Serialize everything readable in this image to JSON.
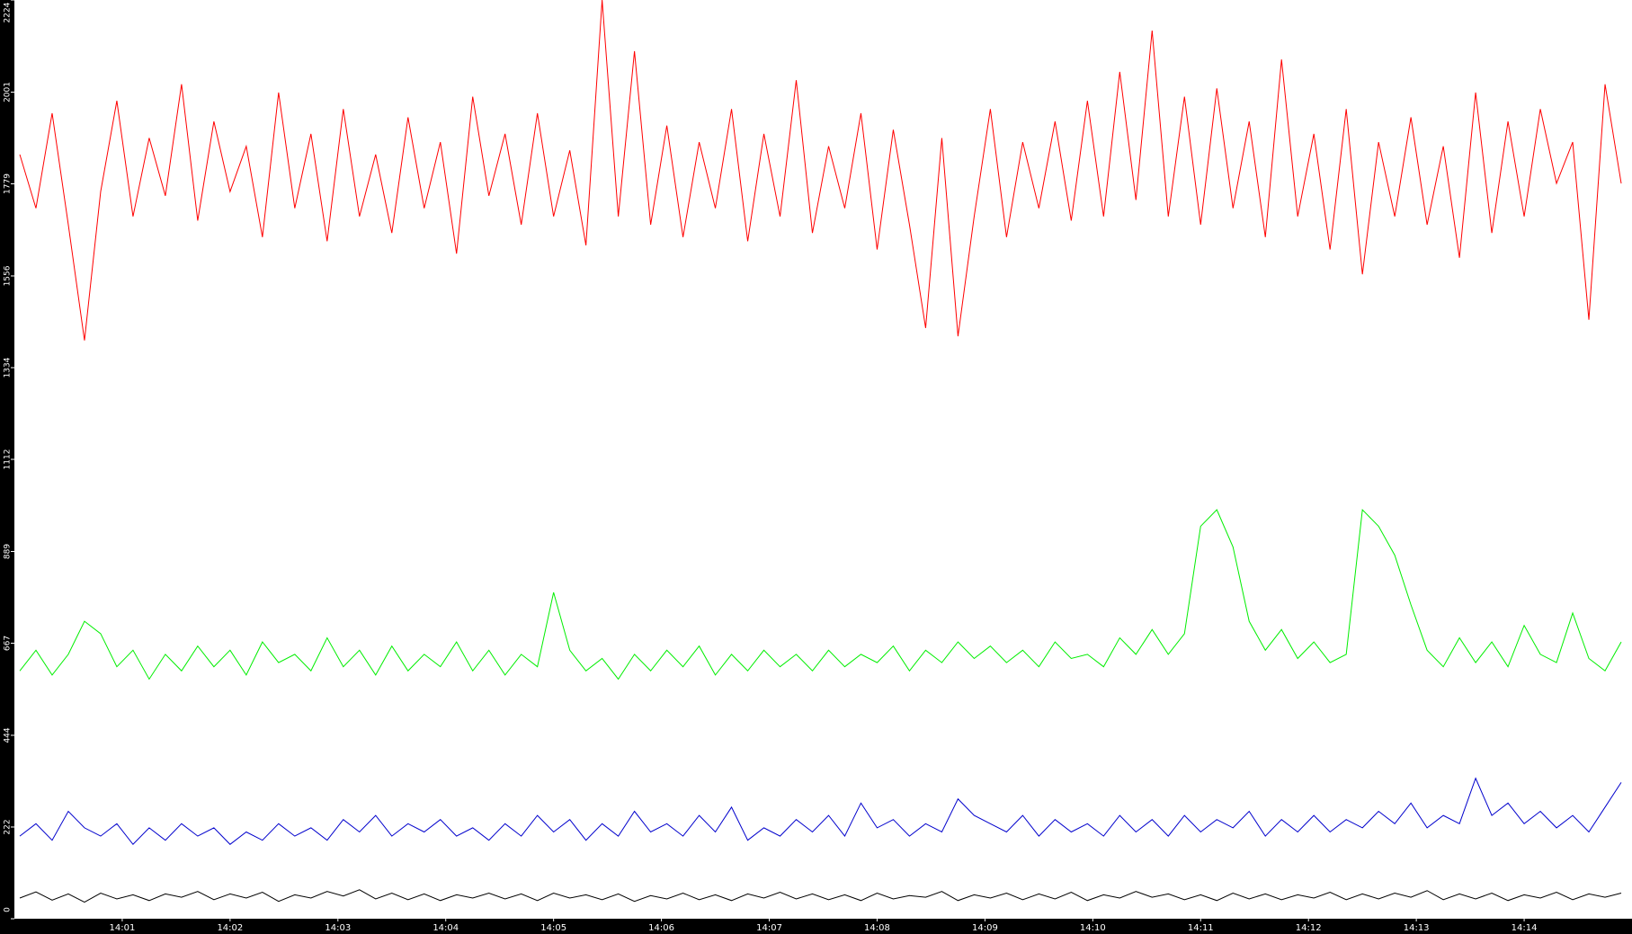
{
  "chart_data": {
    "type": "line",
    "x": [
      0.05,
      0.2,
      0.35,
      0.5,
      0.65,
      0.8,
      0.95,
      1.1,
      1.25,
      1.4,
      1.55,
      1.7,
      1.85,
      2,
      2.15,
      2.3,
      2.45,
      2.6,
      2.75,
      2.9,
      3.05,
      3.2,
      3.35,
      3.5,
      3.65,
      3.8,
      3.95,
      4.1,
      4.25,
      4.4,
      4.55,
      4.7,
      4.85,
      5,
      5.15,
      5.3,
      5.45,
      5.6,
      5.75,
      5.9,
      6.05,
      6.2,
      6.35,
      6.5,
      6.65,
      6.8,
      6.95,
      7.1,
      7.25,
      7.4,
      7.55,
      7.7,
      7.85,
      8,
      8.15,
      8.3,
      8.45,
      8.6,
      8.75,
      8.9,
      9.05,
      9.2,
      9.35,
      9.5,
      9.65,
      9.8,
      9.95,
      10.1,
      10.25,
      10.4,
      10.55,
      10.7,
      10.85,
      11,
      11.15,
      11.3,
      11.45,
      11.6,
      11.75,
      11.9,
      12.05,
      12.2,
      12.35,
      12.5,
      12.65,
      12.8,
      12.95,
      13.1,
      13.25,
      13.4,
      13.55,
      13.7,
      13.85,
      14,
      14.15,
      14.3,
      14.45,
      14.6,
      14.75,
      14.9
    ],
    "xlim": [
      0,
      15
    ],
    "xticks": [
      {
        "value": 1,
        "label": "14:01"
      },
      {
        "value": 2,
        "label": "14:02"
      },
      {
        "value": 3,
        "label": "14:03"
      },
      {
        "value": 4,
        "label": "14:04"
      },
      {
        "value": 5,
        "label": "14:05"
      },
      {
        "value": 6,
        "label": "14:06"
      },
      {
        "value": 7,
        "label": "14:07"
      },
      {
        "value": 8,
        "label": "14:08"
      },
      {
        "value": 9,
        "label": "14:09"
      },
      {
        "value": 10,
        "label": "14:10"
      },
      {
        "value": 11,
        "label": "14:11"
      },
      {
        "value": 12,
        "label": "14:12"
      },
      {
        "value": 13,
        "label": "14:13"
      },
      {
        "value": 14,
        "label": "14:14"
      }
    ],
    "ylim": [
      0,
      2224
    ],
    "yticks": [
      0,
      222,
      444,
      667,
      889,
      1112,
      1334,
      1556,
      1779,
      2001,
      2224
    ],
    "series": [
      {
        "color": "#ff0000",
        "values": [
          1850,
          1720,
          1950,
          1680,
          1400,
          1760,
          1980,
          1700,
          1890,
          1750,
          2020,
          1690,
          1930,
          1760,
          1870,
          1650,
          2000,
          1720,
          1900,
          1640,
          1960,
          1700,
          1850,
          1660,
          1940,
          1720,
          1880,
          1610,
          1990,
          1750,
          1900,
          1680,
          1950,
          1700,
          1860,
          1630,
          2224,
          1700,
          2100,
          1680,
          1920,
          1650,
          1880,
          1720,
          1960,
          1640,
          1900,
          1700,
          2030,
          1660,
          1870,
          1720,
          1950,
          1620,
          1910,
          1680,
          1430,
          1890,
          1410,
          1700,
          1960,
          1650,
          1880,
          1720,
          1930,
          1690,
          1980,
          1700,
          2050,
          1740,
          2150,
          1700,
          1990,
          1680,
          2010,
          1720,
          1930,
          1650,
          2080,
          1700,
          1900,
          1620,
          1960,
          1560,
          1880,
          1700,
          1940,
          1680,
          1870,
          1600,
          2000,
          1660,
          1930,
          1700,
          1960,
          1780,
          1880,
          1450,
          2020,
          1780
        ]
      },
      {
        "color": "#00ee00",
        "values": [
          600,
          650,
          590,
          640,
          720,
          690,
          610,
          650,
          580,
          640,
          600,
          660,
          610,
          650,
          590,
          670,
          620,
          640,
          600,
          680,
          610,
          650,
          590,
          660,
          600,
          640,
          610,
          670,
          600,
          650,
          590,
          640,
          610,
          790,
          650,
          600,
          630,
          580,
          640,
          600,
          650,
          610,
          660,
          590,
          640,
          600,
          650,
          610,
          640,
          600,
          650,
          610,
          640,
          620,
          660,
          600,
          650,
          620,
          670,
          630,
          660,
          620,
          650,
          610,
          670,
          630,
          640,
          610,
          680,
          640,
          700,
          640,
          690,
          950,
          990,
          900,
          720,
          650,
          700,
          630,
          670,
          620,
          640,
          990,
          950,
          880,
          760,
          650,
          610,
          680,
          620,
          670,
          610,
          710,
          640,
          620,
          740,
          630,
          600,
          670
        ]
      },
      {
        "color": "#0000cc",
        "values": [
          200,
          230,
          190,
          260,
          220,
          200,
          230,
          180,
          220,
          190,
          230,
          200,
          220,
          180,
          210,
          190,
          230,
          200,
          220,
          190,
          240,
          210,
          250,
          200,
          230,
          210,
          240,
          200,
          220,
          190,
          230,
          200,
          250,
          210,
          240,
          190,
          230,
          200,
          260,
          210,
          230,
          200,
          250,
          210,
          270,
          190,
          220,
          200,
          240,
          210,
          250,
          200,
          280,
          220,
          240,
          200,
          230,
          210,
          290,
          250,
          230,
          210,
          250,
          200,
          240,
          210,
          230,
          200,
          250,
          210,
          240,
          200,
          250,
          210,
          240,
          220,
          260,
          200,
          240,
          210,
          250,
          210,
          240,
          220,
          260,
          230,
          280,
          220,
          250,
          230,
          340,
          250,
          280,
          230,
          260,
          220,
          250,
          210,
          270,
          330
        ]
      },
      {
        "color": "#000000",
        "values": [
          50,
          65,
          45,
          60,
          40,
          62,
          48,
          58,
          44,
          60,
          52,
          66,
          46,
          60,
          50,
          64,
          42,
          58,
          50,
          66,
          55,
          70,
          48,
          62,
          46,
          60,
          44,
          58,
          50,
          62,
          48,
          60,
          44,
          62,
          50,
          58,
          46,
          60,
          42,
          56,
          48,
          62,
          46,
          58,
          44,
          60,
          50,
          64,
          48,
          60,
          46,
          58,
          44,
          62,
          48,
          56,
          52,
          66,
          44,
          58,
          50,
          62,
          46,
          60,
          48,
          64,
          44,
          58,
          50,
          66,
          52,
          60,
          46,
          58,
          44,
          62,
          48,
          60,
          46,
          58,
          50,
          64,
          46,
          60,
          48,
          62,
          52,
          68,
          46,
          60,
          48,
          62,
          44,
          58,
          50,
          64,
          46,
          60,
          52,
          62
        ]
      }
    ]
  }
}
